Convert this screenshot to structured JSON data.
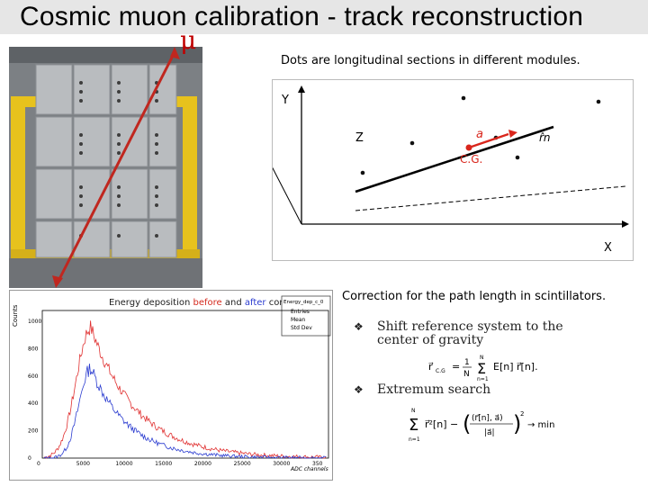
{
  "slide": {
    "title": "Cosmic muon calibration - track reconstruction",
    "mu_symbol": "μ",
    "caption_top": "Dots are longitudinal sections in different modules.",
    "caption_bottom": "Correction for the path length in scintillators."
  },
  "diagram": {
    "axis_y": "Y",
    "axis_x": "X",
    "axis_z": "Z",
    "cg_label": "C.G.",
    "a_label": "a",
    "n_label": "r̂n"
  },
  "histogram": {
    "title_prefix": "Energy deposition ",
    "title_before": "before",
    "title_mid": " and ",
    "title_after": "after",
    "title_suffix": " correction",
    "ylabel": "Counts",
    "xlabel": "ADC channels",
    "stats_name": "Energy_dep_c_0",
    "stats_rows": [
      "Entries",
      "Mean",
      "Std Dev"
    ],
    "y_ticks": [
      "1000",
      "800",
      "600",
      "400",
      "200",
      "0"
    ],
    "x_ticks": [
      "0",
      "5000",
      "10000",
      "15000",
      "20000",
      "25000",
      "30000",
      "350"
    ],
    "colors": {
      "before": "#e03030",
      "after": "#2b3cd0"
    }
  },
  "bullets": [
    {
      "mark": "❖",
      "text": "Shift reference system to the center of gravity"
    },
    {
      "mark": "❖",
      "text": "Extremum search"
    }
  ],
  "formulas": {
    "cg": "r⃗C.G. = (1/N) Σ E[n] r⃗[n]",
    "extremum": "Σ r⃗²[n] − ((r⃗[n], a⃗)/|a⃗|)² → min"
  }
}
